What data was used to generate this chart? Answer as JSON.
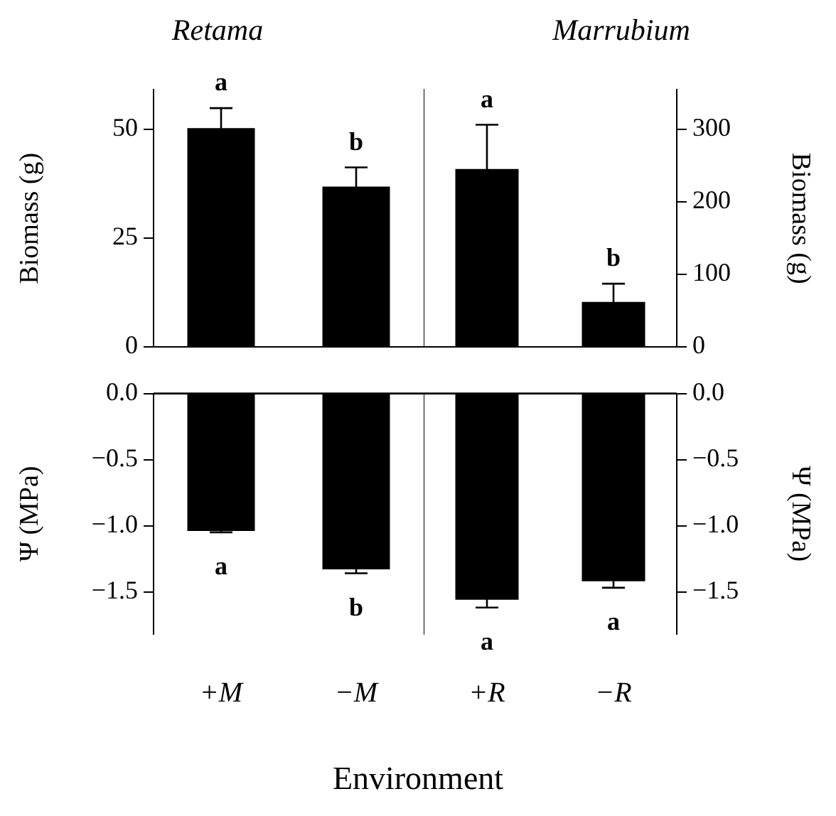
{
  "chart_data": [
    {
      "type": "bar",
      "title": "Retama",
      "ylabel": "Biomass (g)",
      "categories": [
        null,
        null
      ],
      "series": [
        {
          "color": "#000000",
          "values": [
            50.2,
            36.8
          ],
          "errors": [
            4.6,
            4.4
          ]
        }
      ],
      "ylim": [
        0,
        59
      ],
      "yticks": [
        0,
        25,
        50
      ],
      "annotations": [
        "a",
        "b"
      ]
    },
    {
      "type": "bar",
      "title": "Marrubium",
      "ylabel": "Biomass (g)",
      "categories": [
        null,
        null
      ],
      "series": [
        {
          "color": "#000000",
          "values": [
            245,
            62
          ],
          "errors": [
            61,
            25
          ]
        }
      ],
      "ylim": [
        0,
        354
      ],
      "yticks": [
        0,
        100,
        200,
        300
      ],
      "annotations": [
        "a",
        "b"
      ]
    },
    {
      "type": "bar",
      "ylabel": "Ψ (MPa)",
      "xlabel": "Environment",
      "categories": [
        "+M",
        "−M"
      ],
      "series": [
        {
          "color": "#000000",
          "values": [
            -1.04,
            -1.33
          ],
          "errors": [
            0.01,
            0.03
          ]
        }
      ],
      "ylim": [
        -1.82,
        0
      ],
      "yticks": [
        {
          "value": 0,
          "label": "0.0"
        },
        {
          "value": -0.5,
          "label": "−0.5"
        },
        {
          "value": -1,
          "label": "−1.0"
        },
        {
          "value": -1.5,
          "label": "−1.5"
        }
      ],
      "annotations": [
        {
          "text": "a",
          "x": "+M",
          "y": -1.05
        },
        {
          "text": "b",
          "x": "−M",
          "y": -1.36
        }
      ]
    },
    {
      "type": "bar",
      "ylabel": "Ψ (MPa)",
      "categories": [
        "+R",
        "−R"
      ],
      "series": [
        {
          "color": "#000000",
          "values": [
            -1.56,
            -1.42
          ],
          "errors": [
            0.06,
            0.05
          ]
        }
      ],
      "ylim": [
        -1.82,
        0
      ],
      "yticks": [
        {
          "value": 0,
          "label": "0.0"
        },
        {
          "value": -0.5,
          "label": "−0.5"
        },
        {
          "value": -1,
          "label": "−1.0"
        },
        {
          "value": -1.5,
          "label": "−1.5"
        }
      ],
      "annotations": [
        {
          "text": "a",
          "x": "+R",
          "y": -1.62
        },
        {
          "text": "a",
          "x": "−R",
          "y": -1.47
        }
      ]
    }
  ]
}
